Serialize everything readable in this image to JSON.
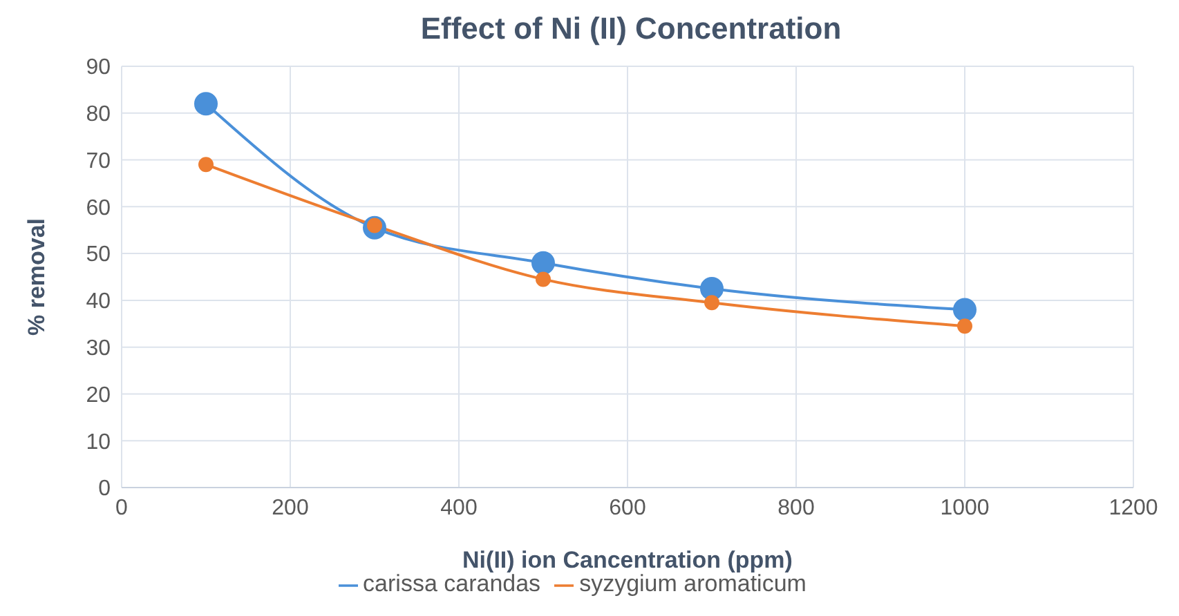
{
  "chart_data": {
    "type": "line",
    "title": "Effect of Ni (II) Concentration",
    "xlabel": "Ni(II) ion Cancentration (ppm)",
    "ylabel": "% removal",
    "x": [
      100,
      300,
      500,
      700,
      1000
    ],
    "series": [
      {
        "name": "carissa carandas",
        "color": "#4a90d9",
        "values": [
          82,
          55.5,
          48,
          42.5,
          38
        ]
      },
      {
        "name": "syzygium aromaticum",
        "color": "#ed7d31",
        "values": [
          69,
          56,
          44.5,
          39.5,
          34.5
        ]
      }
    ],
    "xlim": [
      0,
      1200
    ],
    "xticks": [
      0,
      200,
      400,
      600,
      800,
      1000,
      1200
    ],
    "ylim": [
      0,
      90
    ],
    "yticks": [
      0,
      10,
      20,
      30,
      40,
      50,
      60,
      70,
      80,
      90
    ],
    "grid": true,
    "legend": "bottom",
    "marker": "circle",
    "line_style": "solid"
  }
}
